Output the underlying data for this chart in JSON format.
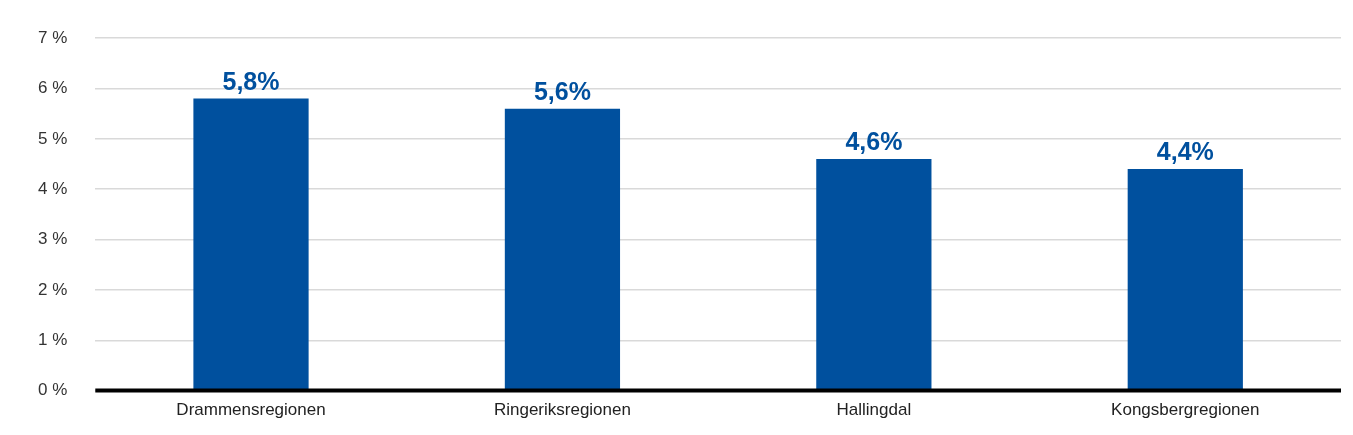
{
  "chart_data": {
    "type": "bar",
    "categories": [
      "Drammensregionen",
      "Ringeriksregionen",
      "Hallingdal",
      "Kongsbergregionen"
    ],
    "values": [
      5.8,
      5.6,
      4.6,
      4.4
    ],
    "value_labels": [
      "5,8%",
      "5,6%",
      "4,6%",
      "4,4%"
    ],
    "color": "#00509e",
    "ylim": [
      0,
      7
    ],
    "yticks": [
      {
        "value": 0,
        "label": "0 %"
      },
      {
        "value": 1,
        "label": "1 %"
      },
      {
        "value": 2,
        "label": "2 %"
      },
      {
        "value": 3,
        "label": "3 %"
      },
      {
        "value": 4,
        "label": "4 %"
      },
      {
        "value": 5,
        "label": "5 %"
      },
      {
        "value": 6,
        "label": "6 %"
      },
      {
        "value": 7,
        "label": "7 %"
      }
    ],
    "grid": "y",
    "legend": false
  }
}
